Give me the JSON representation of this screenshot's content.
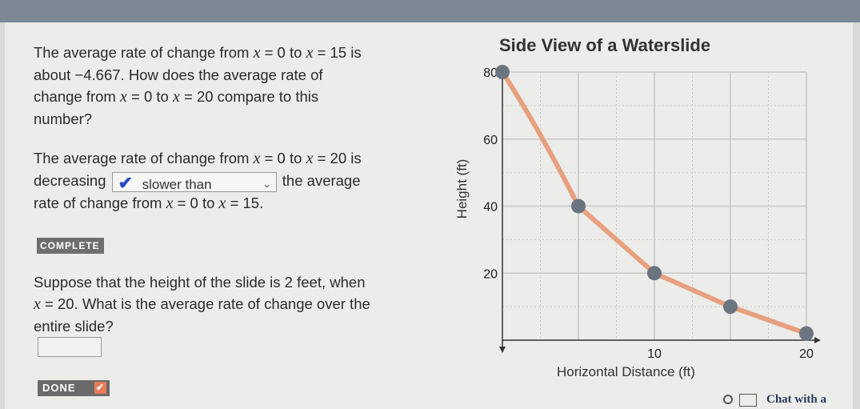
{
  "question1": {
    "t1": "The average rate of change from ",
    "v1": "x",
    "t2": " = 0 to ",
    "v2": "x",
    "t3": " = 15 is",
    "t4": "about −4.667. How does the average rate of",
    "t5": "change from ",
    "v3": "x",
    "t6": " = 0 to ",
    "v4": "x",
    "t7": " = 20 compare to this",
    "t8": "number?"
  },
  "question2": {
    "t1": "The average rate of change from ",
    "v1": "x",
    "t2": " = 0 to ",
    "v2": "x",
    "t3": " = 20 is",
    "t4": "decreasing",
    "dropdown_value": "slower than",
    "t5": " the average",
    "t6": "rate of change from ",
    "v3": "x",
    "t7": " = 0 to ",
    "v4": "x",
    "t8": " = 15."
  },
  "complete_button": "COMPLETE",
  "question3": {
    "t1": "Suppose that the height of the slide is 2 feet, when",
    "v1": "x",
    "t2": " = 20. What is the average rate of change over the",
    "t3": "entire slide?"
  },
  "answer_value": "",
  "done_button": "DONE",
  "chat_label": "Chat with a",
  "colors": {
    "curve": "#e8a07f",
    "points": "#6b7580",
    "grid": "#c7c7c7",
    "check": "#2a48c7"
  },
  "chart_data": {
    "type": "line",
    "title": "Side View of a Waterslide",
    "xlabel": "Horizontal Distance (ft)",
    "ylabel": "Height (ft)",
    "xlim": [
      0,
      20
    ],
    "ylim": [
      0,
      80
    ],
    "x_ticks": [
      10,
      20
    ],
    "y_ticks": [
      20,
      40,
      60,
      80
    ],
    "grid": true,
    "series": [
      {
        "x": [
          0,
          5,
          10,
          15,
          20
        ],
        "y": [
          80,
          40,
          20,
          10,
          2
        ]
      }
    ]
  }
}
